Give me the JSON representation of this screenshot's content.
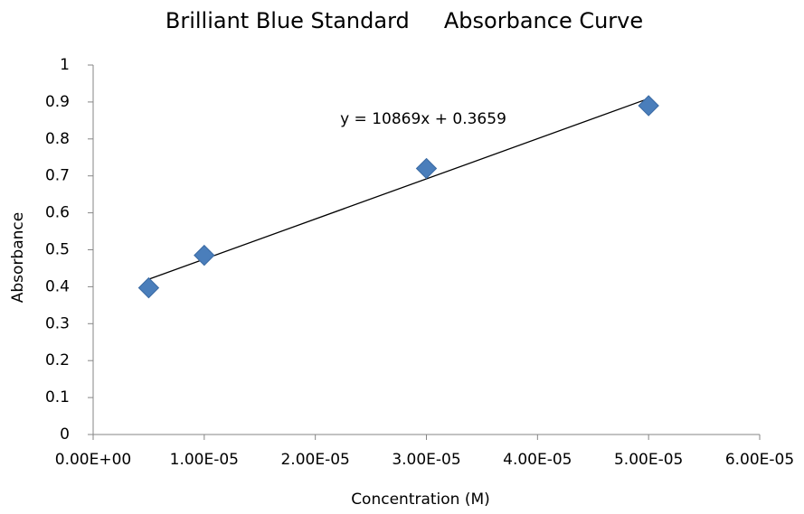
{
  "chart_data": {
    "type": "scatter",
    "title": "Brilliant Blue Standard     Absorbance Curve",
    "x_label": "Concentration (M)",
    "y_label": "Absorbance",
    "series": [
      {
        "name": "Absorbance",
        "color": "#4a7ebb",
        "x": [
          5e-06,
          1e-05,
          3e-05,
          5e-05
        ],
        "values": [
          0.397,
          0.485,
          0.72,
          0.89
        ]
      }
    ],
    "trendline": {
      "label": "y = 10869x + 0.3659",
      "slope": 10869,
      "intercept": 0.3659
    },
    "xlim": [
      0,
      6e-05
    ],
    "xticks": [
      {
        "value": 0,
        "label": "0.00E+00"
      },
      {
        "value": 1e-05,
        "label": "1.00E-05"
      },
      {
        "value": 2e-05,
        "label": "2.00E-05"
      },
      {
        "value": 3e-05,
        "label": "3.00E-05"
      },
      {
        "value": 4e-05,
        "label": "4.00E-05"
      },
      {
        "value": 5e-05,
        "label": "5.00E-05"
      },
      {
        "value": 6e-05,
        "label": "6.00E-05"
      }
    ],
    "ylim": [
      0,
      1
    ],
    "yticks": [
      0,
      0.1,
      0.2,
      0.3,
      0.4,
      0.5,
      0.6,
      0.7,
      0.8,
      0.9,
      1
    ],
    "grid": false,
    "legend": false
  }
}
